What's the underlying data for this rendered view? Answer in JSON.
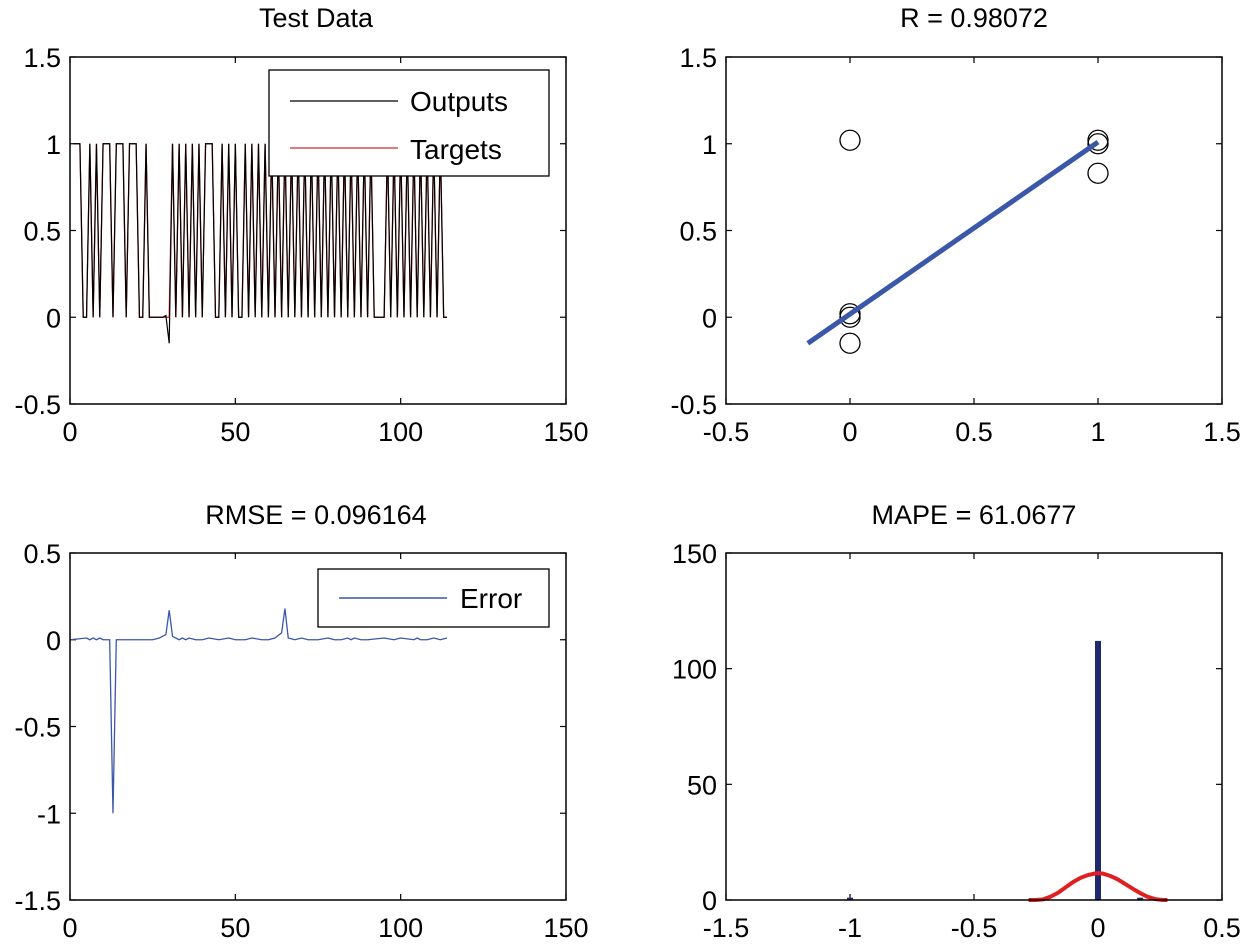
{
  "chart_data": [
    {
      "id": "test-data",
      "type": "line",
      "title": "Test Data",
      "xlim": [
        0,
        150
      ],
      "ylim": [
        -0.5,
        1.5
      ],
      "xticks": [
        "0",
        "50",
        "100",
        "150"
      ],
      "yticks": [
        "-0.5",
        "0",
        "0.5",
        "1",
        "1.5"
      ],
      "legend": {
        "location": "top-right",
        "entries": [
          "Outputs",
          "Targets"
        ]
      },
      "x": [
        1,
        2,
        3,
        4,
        5,
        6,
        7,
        8,
        9,
        10,
        11,
        12,
        13,
        14,
        15,
        16,
        17,
        18,
        19,
        20,
        21,
        22,
        23,
        24,
        25,
        26,
        27,
        28,
        29,
        30,
        31,
        32,
        33,
        34,
        35,
        36,
        37,
        38,
        39,
        40,
        41,
        42,
        43,
        44,
        45,
        46,
        47,
        48,
        49,
        50,
        51,
        52,
        53,
        54,
        55,
        56,
        57,
        58,
        59,
        60,
        61,
        62,
        63,
        64,
        65,
        66,
        67,
        68,
        69,
        70,
        71,
        72,
        73,
        74,
        75,
        76,
        77,
        78,
        79,
        80,
        81,
        82,
        83,
        84,
        85,
        86,
        87,
        88,
        89,
        90,
        91,
        92,
        93,
        94,
        95,
        96,
        97,
        98,
        99,
        100,
        101,
        102,
        103,
        104,
        105,
        106,
        107,
        108,
        109,
        110,
        111,
        112,
        113,
        114
      ],
      "series": [
        {
          "name": "Outputs",
          "color": "#000000",
          "values": [
            1,
            1,
            1,
            0,
            0,
            1,
            0,
            1,
            0,
            1,
            1,
            1,
            0,
            1,
            1,
            1,
            0,
            1,
            1,
            1,
            0,
            0,
            1,
            0,
            0,
            0,
            0,
            0,
            0.01,
            -0.15,
            1,
            0,
            1,
            0,
            1,
            0,
            1,
            0,
            1,
            0,
            1,
            1,
            1,
            0,
            0,
            1,
            0,
            1,
            0,
            1,
            0,
            0,
            1,
            0,
            1,
            0,
            1,
            0,
            1,
            0,
            1,
            0,
            1,
            0,
            1.02,
            0,
            1,
            0,
            1,
            0,
            1,
            0,
            1,
            0,
            1,
            0,
            1,
            0,
            1,
            0,
            1,
            0,
            1,
            0,
            1,
            0,
            1,
            0,
            1,
            0,
            1,
            0,
            0,
            0,
            0,
            1,
            0,
            1,
            0,
            1,
            0,
            1,
            0,
            1,
            0,
            1,
            0,
            1,
            0,
            1,
            0,
            1,
            0,
            0
          ]
        },
        {
          "name": "Targets",
          "color": "#cc2a2a",
          "values": [
            1,
            1,
            1,
            0,
            0,
            1,
            0,
            1,
            0,
            1,
            1,
            1,
            0,
            1,
            1,
            1,
            0,
            1,
            1,
            1,
            0,
            0,
            1,
            0,
            0,
            0,
            0,
            0,
            0,
            0,
            1,
            0,
            1,
            0,
            1,
            0,
            1,
            0,
            1,
            0,
            1,
            1,
            1,
            0,
            0,
            1,
            0,
            1,
            0,
            1,
            0,
            0,
            1,
            0,
            1,
            0,
            1,
            0,
            1,
            0,
            1,
            0,
            1,
            0,
            1,
            0,
            1,
            0,
            1,
            0,
            1,
            0,
            1,
            0,
            1,
            0,
            1,
            0,
            1,
            0,
            1,
            0,
            1,
            0,
            1,
            0,
            1,
            0,
            1,
            0,
            1,
            0,
            0,
            0,
            0,
            1,
            0,
            1,
            0,
            1,
            0,
            1,
            0,
            1,
            0,
            1,
            0,
            1,
            0,
            1,
            0,
            1,
            0,
            0
          ]
        }
      ]
    },
    {
      "id": "regression",
      "type": "scatter",
      "title": "R = 0.98072",
      "xlim": [
        -0.5,
        1.5
      ],
      "ylim": [
        -0.5,
        1.5
      ],
      "xticks": [
        "-0.5",
        "0",
        "0.5",
        "1",
        "1.5"
      ],
      "yticks": [
        "-0.5",
        "0",
        "0.5",
        "1",
        "1.5"
      ],
      "points": [
        [
          0,
          1.02
        ],
        [
          0,
          0.0
        ],
        [
          0,
          0.02
        ],
        [
          0,
          -0.15
        ],
        [
          1,
          1.0
        ],
        [
          1,
          1.02
        ],
        [
          1,
          0.83
        ]
      ],
      "fit_line": {
        "x": [
          -0.17,
          1.0
        ],
        "y": [
          -0.15,
          1.01
        ],
        "color": "#3b57a8"
      }
    },
    {
      "id": "error",
      "type": "line",
      "title": "RMSE = 0.096164",
      "xlim": [
        0,
        150
      ],
      "ylim": [
        -1.5,
        0.5
      ],
      "xticks": [
        "0",
        "50",
        "100",
        "150"
      ],
      "yticks": [
        "-1.5",
        "-1",
        "-0.5",
        "0",
        "0.5"
      ],
      "legend": {
        "location": "top-right",
        "entries": [
          "Error"
        ]
      },
      "series": [
        {
          "name": "Error",
          "color": "#3b57a8",
          "x": [
            0,
            5,
            6,
            7,
            8,
            9,
            10,
            12,
            13,
            14,
            15,
            20,
            25,
            27,
            29,
            30,
            31,
            33,
            34,
            35,
            36,
            38,
            40,
            42,
            45,
            48,
            50,
            53,
            55,
            58,
            60,
            62,
            64,
            65,
            66,
            68,
            70,
            72,
            75,
            78,
            80,
            82,
            84,
            85,
            86,
            88,
            90,
            95,
            98,
            100,
            104,
            105,
            106,
            108,
            110,
            112,
            114
          ],
          "values": [
            0,
            0.01,
            0,
            0.01,
            0,
            0.01,
            0,
            0,
            -1.0,
            0,
            0,
            0,
            0,
            0.01,
            0.03,
            0.17,
            0.02,
            0,
            0.01,
            0,
            0.01,
            0,
            0,
            0.01,
            0,
            0.01,
            0,
            0,
            0.01,
            0,
            0,
            0.01,
            0.04,
            0.18,
            0.01,
            0,
            0.01,
            0,
            0,
            0.01,
            0,
            0,
            0.01,
            0,
            0.01,
            0,
            0,
            0.01,
            0,
            0.01,
            0,
            0.01,
            0,
            0,
            0.01,
            0,
            0.01
          ]
        }
      ]
    },
    {
      "id": "histogram",
      "type": "bar",
      "title": "MAPE = 61.0677",
      "xlim": [
        -1.5,
        0.5
      ],
      "ylim": [
        0,
        150
      ],
      "xticks": [
        "-1.5",
        "-1",
        "-0.5",
        "0",
        "0.5"
      ],
      "yticks": [
        "0",
        "50",
        "100",
        "150"
      ],
      "bars": [
        {
          "x": 0,
          "value": 112,
          "color": "#1f2a6e"
        },
        {
          "x": -1.0,
          "value": 1,
          "color": "#1f2a6e"
        },
        {
          "x": 0.17,
          "value": 1,
          "color": "#1f2a6e"
        }
      ],
      "fit_curve": {
        "color": "#e02020",
        "x": [
          -0.28,
          -0.25,
          -0.22,
          -0.19,
          -0.16,
          -0.13,
          -0.1,
          -0.07,
          -0.04,
          -0.01,
          0.0,
          0.02,
          0.05,
          0.08,
          0.11,
          0.14,
          0.17,
          0.2,
          0.23,
          0.26,
          0.28
        ],
        "y": [
          0,
          0,
          0.3,
          1.5,
          3.2,
          5.5,
          7.8,
          9.6,
          10.8,
          11.5,
          11.6,
          11.4,
          10.4,
          8.9,
          6.9,
          4.9,
          3.0,
          1.4,
          0.4,
          0,
          0
        ]
      }
    }
  ]
}
